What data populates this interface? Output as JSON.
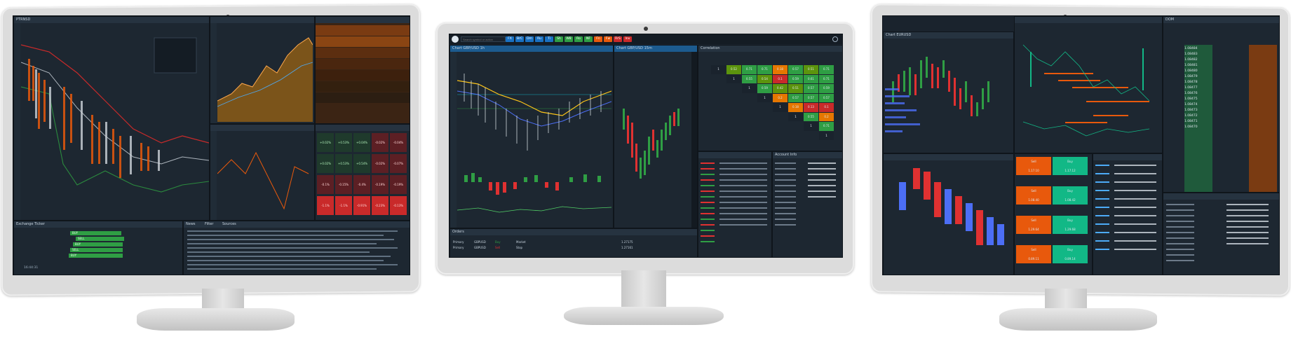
{
  "left_monitor": {
    "chart_title": "PTRNSD",
    "instrument": "PTRNSD",
    "window_title": "Chart PTRNSD",
    "bottom_panel_title": "Exchange Ticker",
    "ticker_rows": [
      "BUY",
      "SELL",
      "BUY",
      "SELL",
      "BUY"
    ],
    "ticker_time": "16:44:31",
    "news_tabs": [
      "News",
      "Filter",
      "Sources"
    ],
    "quote_cells": [
      [
        "+0.02%",
        "+0.53%",
        "+0.04%",
        "-0.02%",
        "-0.04%"
      ],
      [
        "+0.02%",
        "+0.53%",
        "+0.54%",
        "-0.02%",
        "-0.07%"
      ],
      [
        "-0.1%",
        "-0.15%",
        "-0.4%",
        "-0.19%",
        "-0.19%"
      ],
      [
        "-1.1%",
        "-1.1%",
        "-0.91%",
        "-0.23%",
        "-0.13%"
      ]
    ]
  },
  "center_monitor": {
    "search_placeholder": "Search symbol or action",
    "top_tabs": [
      "FX",
      "BrC",
      "Dm",
      "Ru",
      "Ti",
      "Sh",
      "W8",
      "Ro",
      "NF",
      "Fn",
      "Fw",
      "RrS",
      "Inv"
    ],
    "chart1_title": "Chart GBP/USD 1h",
    "chart2_title": "Chart GBP/USD 15m",
    "correlation_title": "Correlation",
    "correlation_values": [
      [
        "1",
        "0.52",
        "0.71",
        "0.71",
        "0.18",
        "0.57",
        "0.51",
        "0.71"
      ],
      [
        "",
        "1",
        "0.55",
        "0.54",
        "0.1",
        "0.59",
        "0.61",
        "0.71"
      ],
      [
        "",
        "",
        "1",
        "0.59",
        "0.42",
        "0.51",
        "0.57",
        "0.59"
      ],
      [
        "",
        "",
        "",
        "1",
        "0.2",
        "0.57",
        "0.57",
        "0.57"
      ],
      [
        "",
        "",
        "",
        "",
        "1",
        "0.18",
        "0.13",
        "0.1"
      ],
      [
        "",
        "",
        "",
        "",
        "",
        "1",
        "0.55",
        "0.2"
      ],
      [
        "",
        "",
        "",
        "",
        "",
        "",
        "1",
        "0.71"
      ],
      [
        "",
        "",
        "",
        "",
        "",
        "",
        "",
        "1"
      ]
    ],
    "account_title": "Account Info",
    "orders_title": "Orders",
    "order_rows": [
      [
        "Primary",
        "GBPUSD",
        "Buy",
        "Market",
        "1.27175"
      ],
      [
        "Primary",
        "GBPUSD",
        "Sell",
        "Stop",
        "1.27161"
      ]
    ]
  },
  "right_monitor": {
    "chart_title": "Chart EURUSD",
    "dom_title": "DOM",
    "trade_buttons": [
      "Sell",
      "Buy",
      "Sell",
      "Buy",
      "Sell",
      "Buy",
      "Sell",
      "Buy"
    ],
    "trade_prices": [
      "1.17.10",
      "1.17.12",
      "1.08.40",
      "1.08.42",
      "1.29.64",
      "1.29.68",
      "0.89.11",
      "0.89.14"
    ],
    "price_ladder": [
      "1.08484",
      "1.08483",
      "1.08482",
      "1.08481",
      "1.08480",
      "1.08479",
      "1.08478",
      "1.08477",
      "1.08476",
      "1.08475",
      "1.08474",
      "1.08473",
      "1.08472",
      "1.08471",
      "1.08470"
    ]
  },
  "colors": {
    "screen_bg": "#1a232d",
    "bull": "#2f9e44",
    "bear": "#e03131",
    "accent": "#12b886",
    "orange": "#f08c00"
  }
}
